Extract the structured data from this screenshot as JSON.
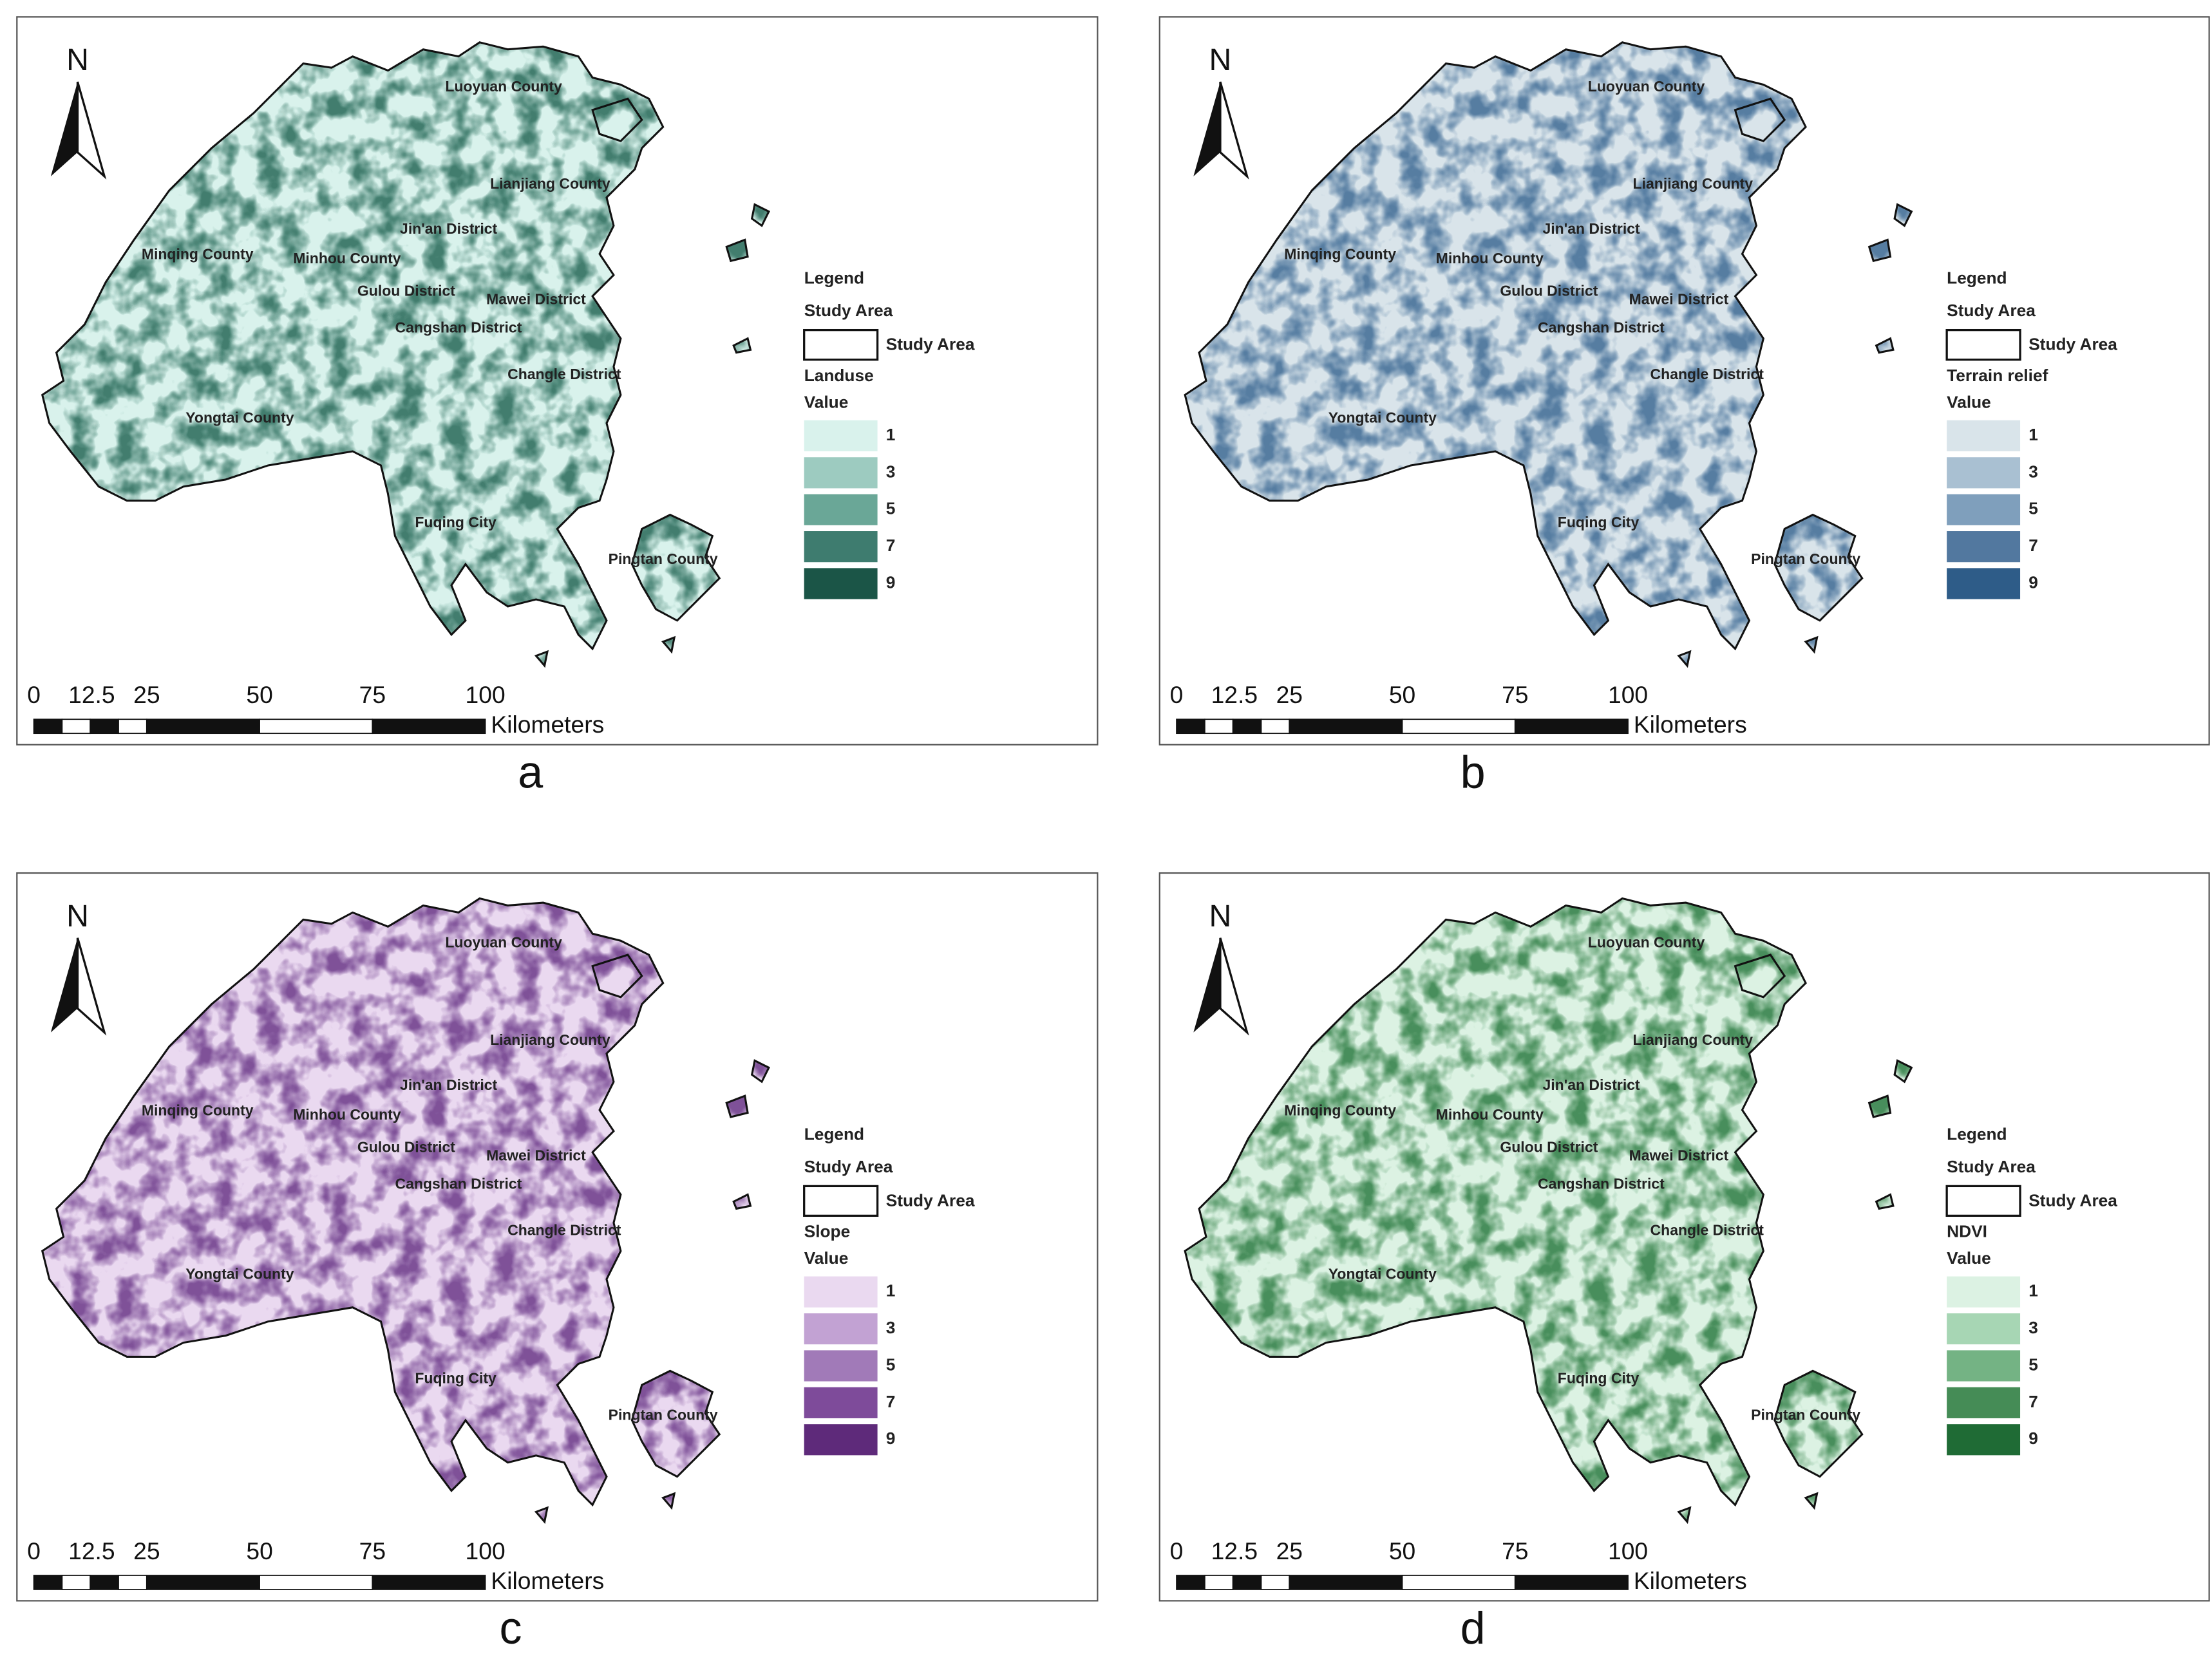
{
  "north_label": "N",
  "scale_bar": {
    "labels": [
      "0",
      "12.5",
      "25",
      "50",
      "75",
      "100"
    ],
    "unit": "Kilometers"
  },
  "place_labels": [
    "Luoyuan County",
    "Lianjiang County",
    "Jin'an District",
    "Minqing County",
    "Minhou County",
    "Gulou District",
    "Mawei District",
    "Cangshan District",
    "Changle District",
    "Yongtai County",
    "Fuqing City",
    "Pingtan County"
  ],
  "legend": {
    "title": "Legend",
    "study_area_heading": "Study Area",
    "study_area_item": "Study Area",
    "value_heading": "Value",
    "class_labels": [
      "1",
      "3",
      "5",
      "7",
      "9"
    ]
  },
  "panels": [
    {
      "caption": "a",
      "layer": "Landuse",
      "colors": [
        "#d9f2ec",
        "#9dcbc0",
        "#6aa797",
        "#3e7c6f",
        "#1b5547"
      ]
    },
    {
      "caption": "b",
      "layer": "Terrain relief",
      "colors": [
        "#d9e4ea",
        "#a9c0d2",
        "#7f9fbc",
        "#52789f",
        "#2e5c88"
      ]
    },
    {
      "caption": "c",
      "layer": "Slope",
      "colors": [
        "#ead9f0",
        "#c2a2d3",
        "#a17ab8",
        "#7e4b9a",
        "#5e2a7a"
      ]
    },
    {
      "caption": "d",
      "layer": "NDVI",
      "colors": [
        "#dcf2e3",
        "#a7d6b4",
        "#74b384",
        "#458c56",
        "#1f6b35"
      ]
    }
  ]
}
